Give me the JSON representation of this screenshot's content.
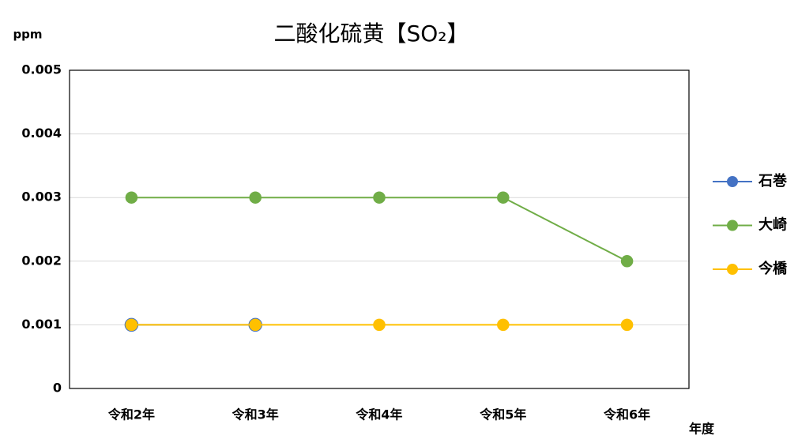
{
  "chart_data": {
    "type": "line",
    "title": "二酸化硫黄【SO₂】",
    "y_label": "ppm",
    "x_label": "年度",
    "categories": [
      "令和2年",
      "令和3年",
      "令和4年",
      "令和5年",
      "令和6年"
    ],
    "series": [
      {
        "name": "石巻",
        "color": "#4472c4",
        "values": [
          0.001,
          0.001,
          null,
          null,
          null
        ]
      },
      {
        "name": "大崎",
        "color": "#70ad47",
        "values": [
          0.003,
          0.003,
          0.003,
          0.003,
          0.002
        ]
      },
      {
        "name": "今橋",
        "color": "#ffc000",
        "values": [
          0.001,
          0.001,
          0.001,
          0.001,
          0.001
        ]
      }
    ],
    "ylim": [
      0,
      0.005
    ],
    "yticks": [
      0,
      0.001,
      0.002,
      0.003,
      0.004,
      0.005
    ],
    "grid": true,
    "legend": "right"
  }
}
